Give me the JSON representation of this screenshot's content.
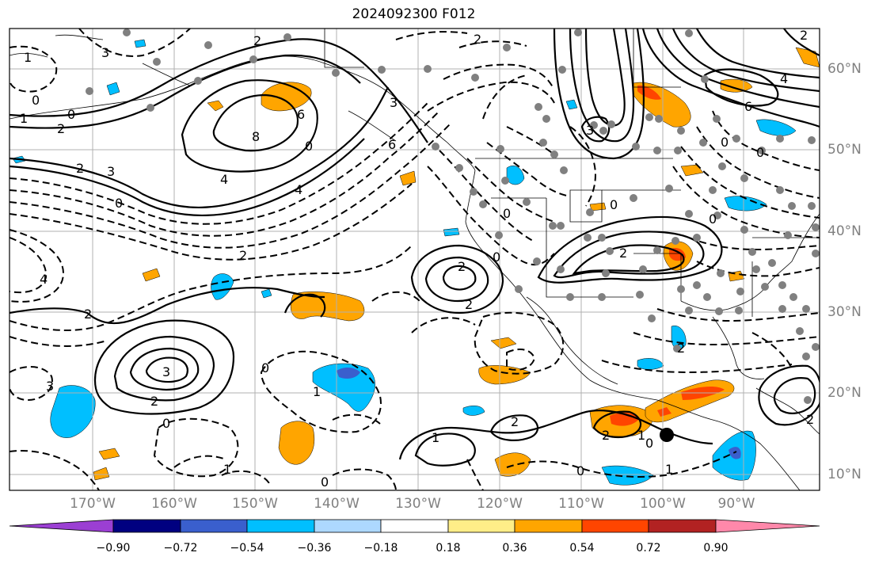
{
  "title": "2024092300 F012",
  "lon_labels": [
    "170°W",
    "160°W",
    "150°W",
    "140°W",
    "130°W",
    "120°W",
    "110°W",
    "100°W",
    "90°W"
  ],
  "lat_labels": [
    "60°N",
    "50°N",
    "40°N",
    "30°N",
    "20°N",
    "10°N"
  ],
  "colorbar": {
    "colors": [
      "#9b3fd3",
      "#000080",
      "#3a5fcd",
      "#00bfff",
      "#add8ff",
      "#ffffff",
      "#ffee88",
      "#ffa500",
      "#ff4500",
      "#b22222",
      "#ff88aa"
    ],
    "labels": [
      "−0.90",
      "−0.72",
      "−0.54",
      "−0.36",
      "−0.18",
      "0.18",
      "0.36",
      "0.54",
      "0.72",
      "0.90"
    ]
  },
  "contour_labels": [
    "2",
    "3",
    "0",
    "1",
    "0",
    "2",
    "3",
    "0",
    "2",
    "1",
    "6",
    "8",
    "4",
    "3",
    "2",
    "0",
    "4",
    "6",
    "2",
    "4",
    "2",
    "2",
    "0",
    "2",
    "3",
    "0",
    "3",
    "2",
    "0",
    "1",
    "1",
    "1",
    "0",
    "2",
    "2",
    "0",
    "1",
    "0",
    "1",
    "2",
    "2",
    "2",
    "3",
    "0",
    "4",
    "6",
    "2",
    "0",
    "0",
    "0",
    "0"
  ]
}
